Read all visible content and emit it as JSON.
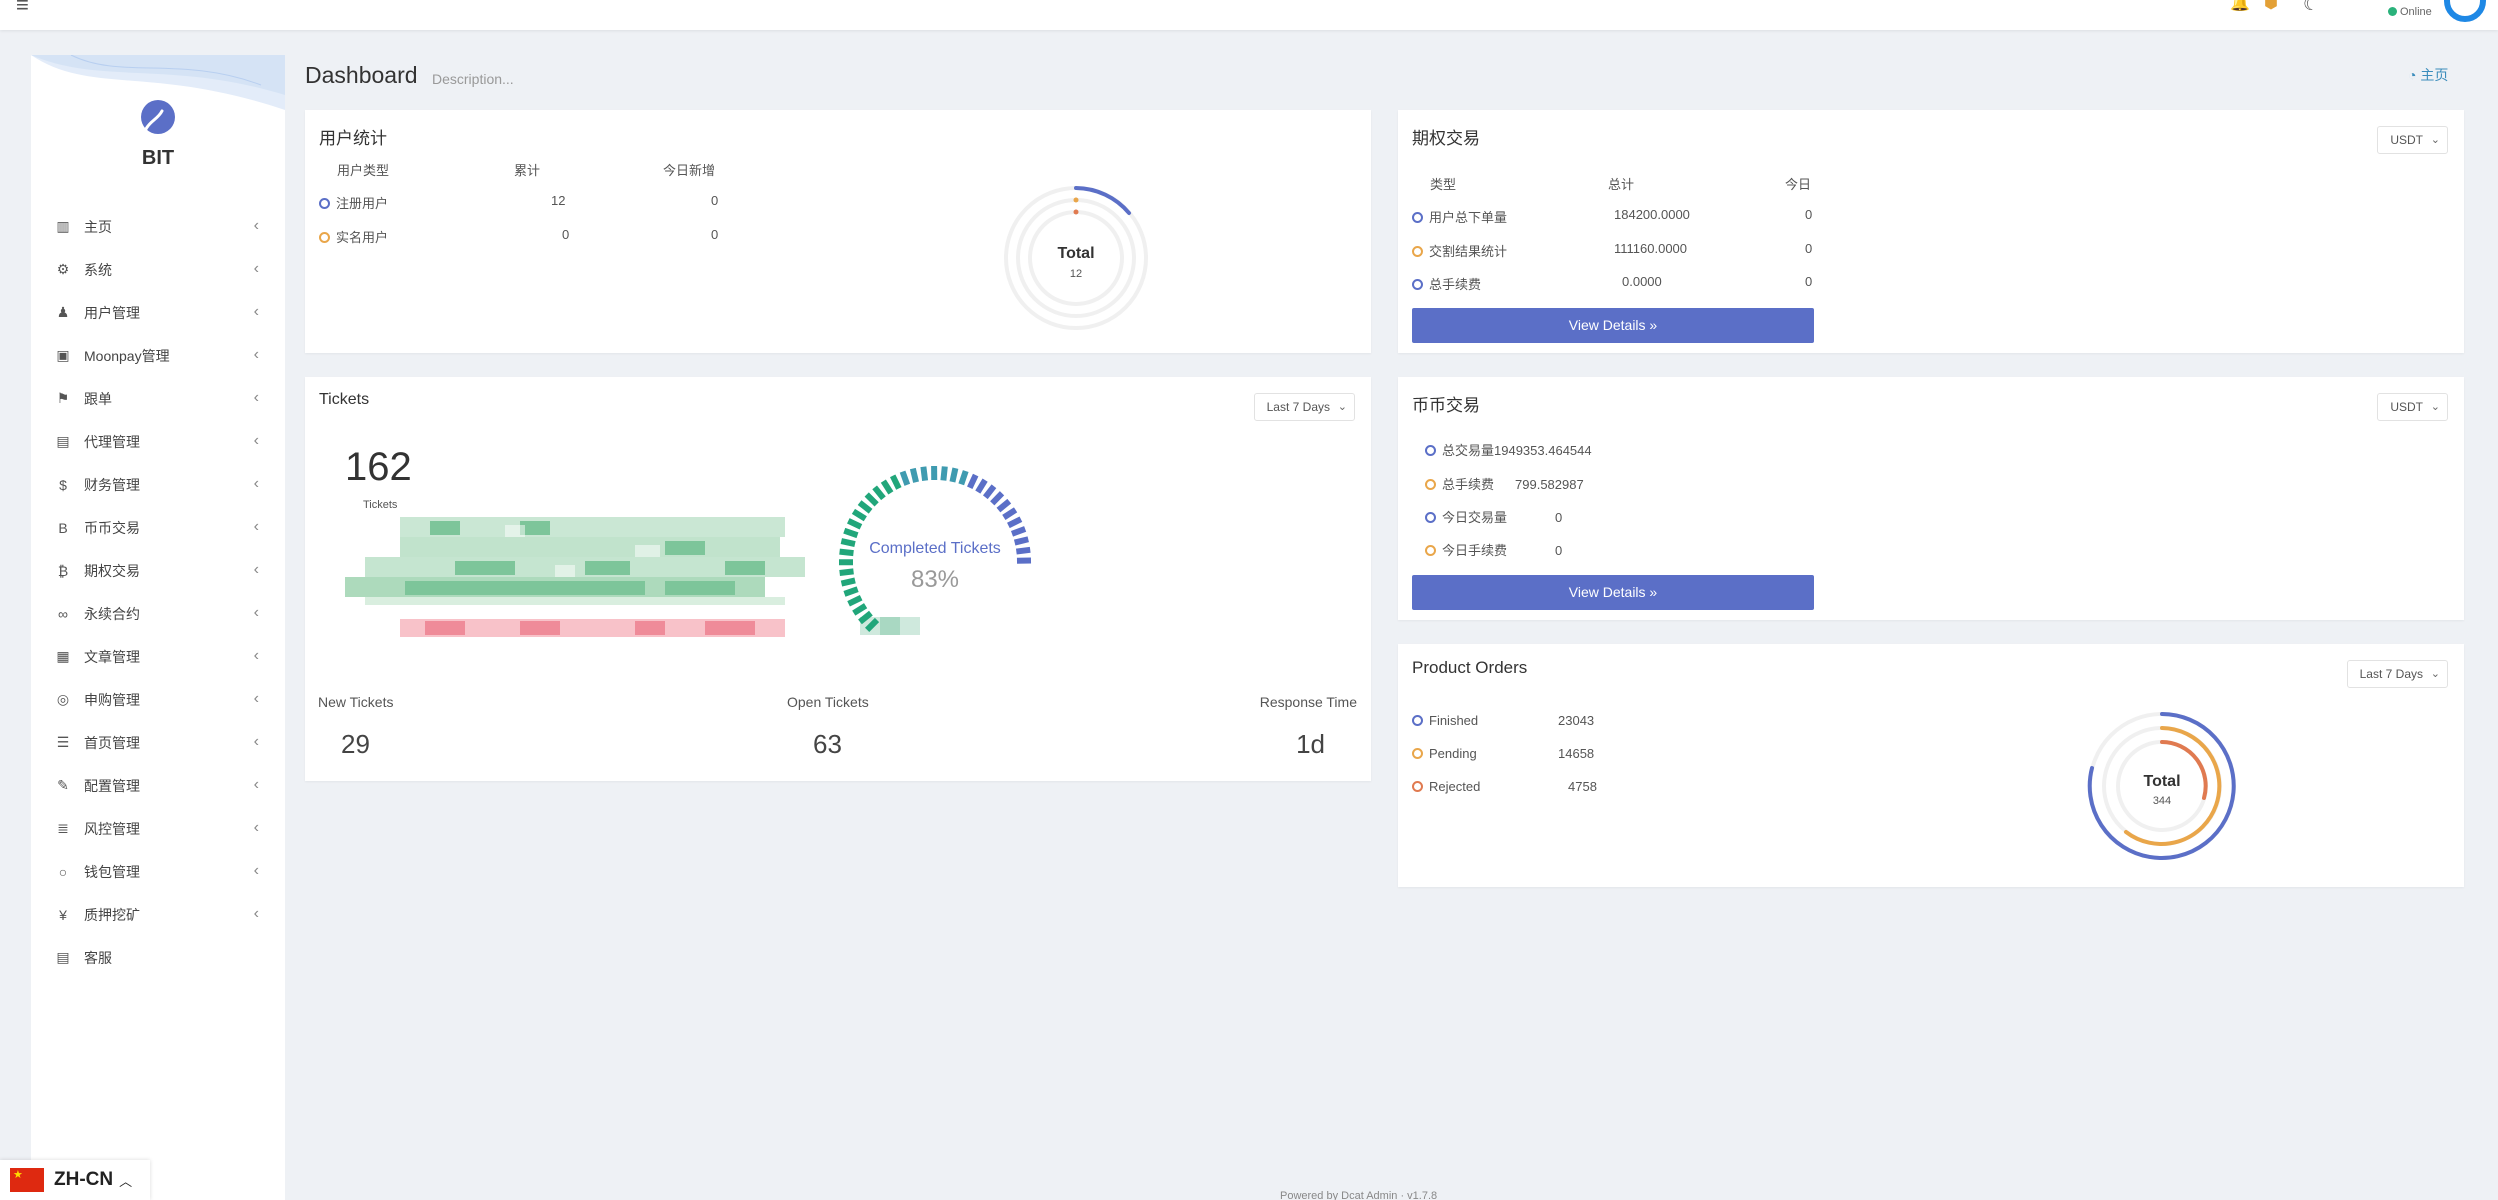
{
  "topbar": {
    "status_text": "Online"
  },
  "sidebar": {
    "brand": "BIT",
    "items": [
      {
        "label": "主页",
        "icon": "bar-chart-icon",
        "glyph": "▥"
      },
      {
        "label": "系统",
        "icon": "gear-icon",
        "glyph": "⚙"
      },
      {
        "label": "用户管理",
        "icon": "user-icon",
        "glyph": "♟"
      },
      {
        "label": "Moonpay管理",
        "icon": "card-icon",
        "glyph": "▣"
      },
      {
        "label": "跟单",
        "icon": "flag-icon",
        "glyph": "⚑"
      },
      {
        "label": "代理管理",
        "icon": "id-card-icon",
        "glyph": "▤"
      },
      {
        "label": "财务管理",
        "icon": "dollar-icon",
        "glyph": "$"
      },
      {
        "label": "币币交易",
        "icon": "bitcoin-b-icon",
        "glyph": "B"
      },
      {
        "label": "期权交易",
        "icon": "bitcoin-icon",
        "glyph": "₿"
      },
      {
        "label": "永续合约",
        "icon": "link-icon",
        "glyph": "∞"
      },
      {
        "label": "文章管理",
        "icon": "newspaper-icon",
        "glyph": "▦"
      },
      {
        "label": "申购管理",
        "icon": "lifebuoy-icon",
        "glyph": "◎"
      },
      {
        "label": "首页管理",
        "icon": "list-icon",
        "glyph": "☰"
      },
      {
        "label": "配置管理",
        "icon": "wrench-icon",
        "glyph": "✎"
      },
      {
        "label": "风控管理",
        "icon": "align-left-icon",
        "glyph": "≣"
      },
      {
        "label": "钱包管理",
        "icon": "circle-icon",
        "glyph": "○"
      },
      {
        "label": "质押挖矿",
        "icon": "yen-icon",
        "glyph": "¥"
      },
      {
        "label": "客服",
        "icon": "contact-card-icon",
        "glyph": "▤"
      }
    ]
  },
  "header": {
    "title": "Dashboard",
    "description": "Description...",
    "breadcrumb_home": "主页"
  },
  "user_stats": {
    "title": "用户统计",
    "columns": [
      "用户类型",
      "累计",
      "今日新增"
    ],
    "rows": [
      {
        "type": "注册用户",
        "total": "12",
        "today": "0"
      },
      {
        "type": "实名用户",
        "total": "0",
        "today": "0"
      }
    ],
    "donut": {
      "label": "Total",
      "value": "12"
    }
  },
  "options_trading": {
    "title": "期权交易",
    "currency": "USDT",
    "columns": [
      "类型",
      "总计",
      "今日"
    ],
    "rows": [
      {
        "type": "用户总下单量",
        "total": "184200.0000",
        "today": "0"
      },
      {
        "type": "交割结果统计",
        "total": "111160.0000",
        "today": "0"
      },
      {
        "type": "总手续费",
        "total": "0.0000",
        "today": "0"
      }
    ],
    "button": "View Details »"
  },
  "tickets": {
    "title": "Tickets",
    "range": "Last 7 Days",
    "total_value": "162",
    "total_label": "Tickets",
    "gauge_label": "Completed Tickets",
    "gauge_value": "83%",
    "gauge_fraction": 0.83,
    "stats": [
      {
        "label": "New Tickets",
        "value": "29"
      },
      {
        "label": "Open Tickets",
        "value": "63"
      },
      {
        "label": "Response Time",
        "value": "1d"
      }
    ]
  },
  "spot_trading": {
    "title": "币币交易",
    "currency": "USDT",
    "rows": [
      {
        "label": "总交易量",
        "value": "1949353.464544"
      },
      {
        "label": "总手续费",
        "value": "799.582987"
      },
      {
        "label": "今日交易量",
        "value": "0"
      },
      {
        "label": "今日手续费",
        "value": "0"
      }
    ],
    "button": "View Details »"
  },
  "product_orders": {
    "title": "Product Orders",
    "range": "Last 7 Days",
    "rows": [
      {
        "label": "Finished",
        "value": "23043"
      },
      {
        "label": "Pending",
        "value": "14658"
      },
      {
        "label": "Rejected",
        "value": "4758"
      }
    ],
    "donut": {
      "label": "Total",
      "value": "344"
    }
  },
  "language": {
    "code": "ZH-CN"
  },
  "footer": {
    "text": "Powered by Dcat Admin · v1.7.8"
  },
  "colors": {
    "primary": "#5b6fc7",
    "orange": "#e9a64a",
    "red": "#e07a50",
    "green": "#21a67a",
    "blue": "#3c8dbc"
  }
}
